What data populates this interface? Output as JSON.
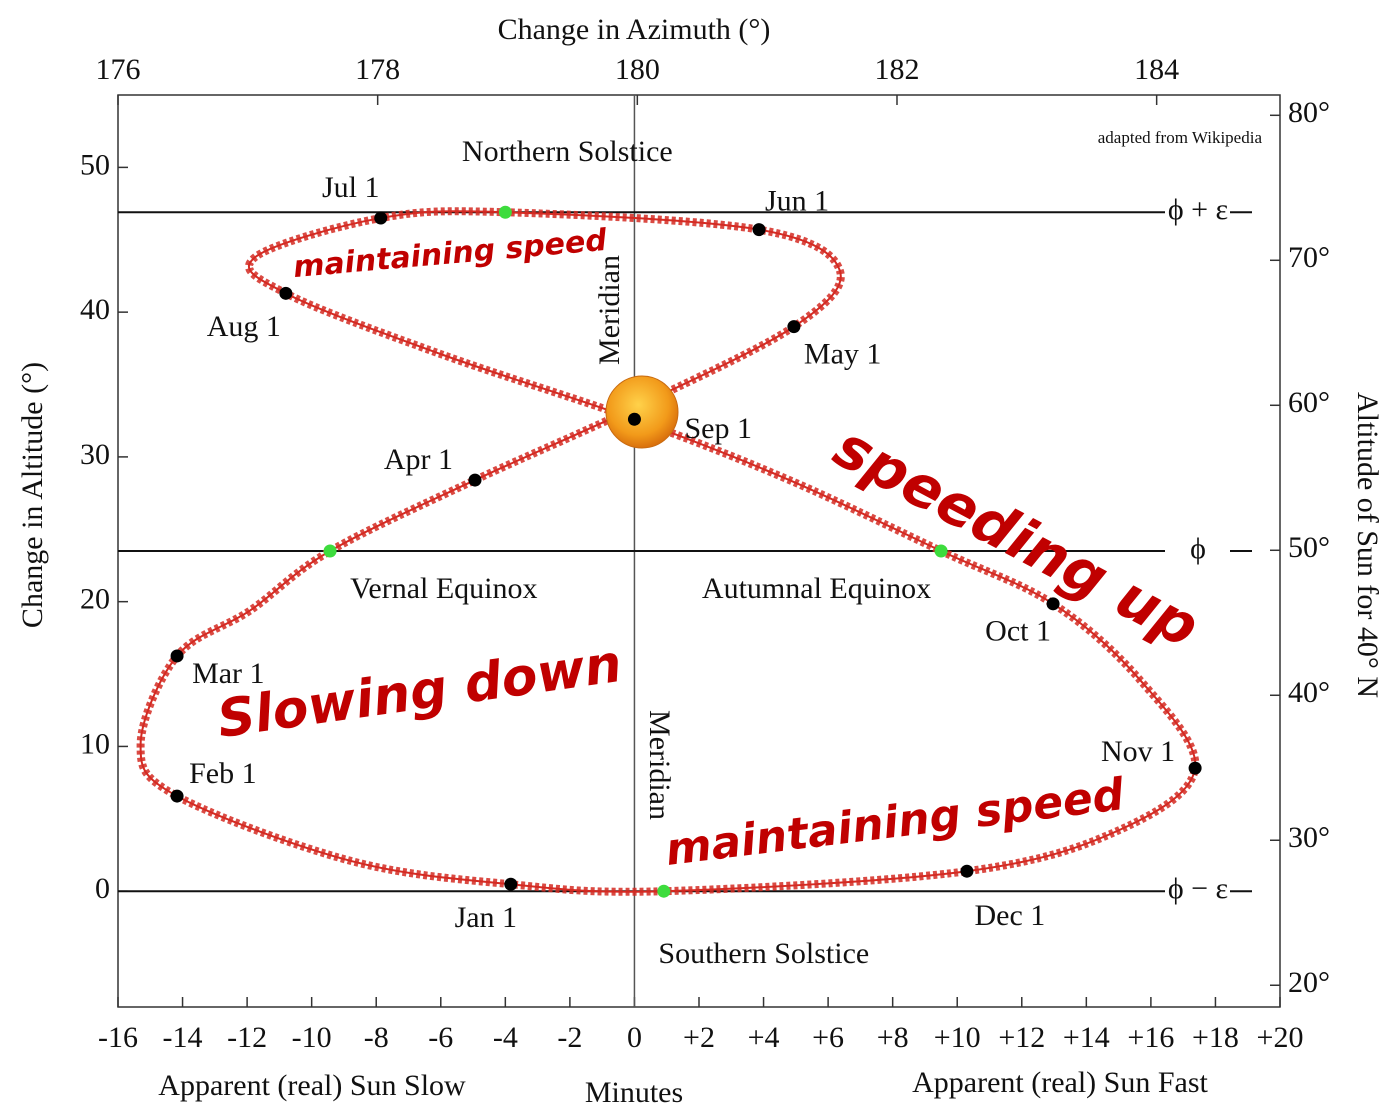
{
  "chart_data": {
    "type": "line",
    "x2_label": "Change in Azimuth (°)",
    "x_label": "Minutes",
    "x_note_left": "Apparent (real) Sun Slow",
    "x_note_right": "Apparent (real) Sun Fast",
    "y_label": "Change in Altitude (°)",
    "y2_label": "Altitude of Sun for 40° N",
    "source": "adapted from Wikipedia",
    "xlim": [
      -16,
      20
    ],
    "xticks": [
      -16,
      -14,
      -12,
      -10,
      -8,
      -6,
      -4,
      -2,
      0,
      {
        "value": 2,
        "label": "+2"
      },
      {
        "value": 4,
        "label": "+4"
      },
      {
        "value": 6,
        "label": "+6"
      },
      {
        "value": 8,
        "label": "+8"
      },
      {
        "value": 10,
        "label": "+10"
      },
      {
        "value": 12,
        "label": "+12"
      },
      {
        "value": 14,
        "label": "+14"
      },
      {
        "value": 16,
        "label": "+16"
      },
      {
        "value": 18,
        "label": "+18"
      },
      {
        "value": 20,
        "label": "+20"
      }
    ],
    "x2lim": [
      176,
      184.95
    ],
    "x2ticks": [
      176,
      178,
      180,
      182,
      184
    ],
    "ylim": [
      -8,
      55
    ],
    "yticks": [
      0,
      10,
      20,
      30,
      40,
      50
    ],
    "y2lim": [
      18.5,
      81.4
    ],
    "y2ticks": [
      {
        "value": 20,
        "label": "20°"
      },
      {
        "value": 30,
        "label": "30°"
      },
      {
        "value": 40,
        "label": "40°"
      },
      {
        "value": 50,
        "label": "50°"
      },
      {
        "value": 60,
        "label": "60°"
      },
      {
        "value": 70,
        "label": "70°"
      },
      {
        "value": 80,
        "label": "80°"
      }
    ],
    "x": [
      -3.83,
      -8.8,
      -14.17,
      -15.3,
      -14.17,
      -11.9,
      -9.43,
      -4.94,
      0.0,
      4.94,
      6.36,
      3.86,
      -4.0,
      -7.86,
      -11.75,
      -10.8,
      -6.0,
      0.0,
      4.8,
      9.5,
      12.97,
      15.66,
      17.37,
      15.0,
      10.3,
      0.91
    ],
    "series": [
      {
        "color": "#d42a22",
        "values": [
          0.48,
          2.1,
          6.57,
          10.1,
          16.25,
          19.4,
          23.5,
          28.4,
          33.4,
          39.0,
          42.9,
          45.7,
          46.9,
          46.5,
          43.8,
          41.3,
          37.1,
          32.6,
          28.4,
          23.5,
          19.85,
          14.6,
          8.5,
          4.2,
          1.38,
          0.0
        ]
      }
    ],
    "points": [
      {
        "label": "Jan 1",
        "x": -3.83,
        "y": 0.48,
        "color": "#000000"
      },
      {
        "label": "Feb 1",
        "x": -14.17,
        "y": 6.57,
        "color": "#000000"
      },
      {
        "label": "Mar 1",
        "x": -14.17,
        "y": 16.25,
        "color": "#000000"
      },
      {
        "label": "Vernal Equinox",
        "x": -9.43,
        "y": 23.5,
        "color": "#3ddc3d"
      },
      {
        "label": "Apr 1",
        "x": -4.94,
        "y": 28.4,
        "color": "#000000"
      },
      {
        "label": "May 1",
        "x": 4.94,
        "y": 39.0,
        "color": "#000000"
      },
      {
        "label": "Jun 1",
        "x": 3.86,
        "y": 45.7,
        "color": "#000000"
      },
      {
        "label": "Northern Solstice",
        "x": -4.0,
        "y": 46.9,
        "color": "#3ddc3d"
      },
      {
        "label": "Jul 1",
        "x": -7.86,
        "y": 46.5,
        "color": "#000000"
      },
      {
        "label": "Aug 1",
        "x": -10.8,
        "y": 41.3,
        "color": "#000000"
      },
      {
        "label": "Sep 1",
        "x": 0.0,
        "y": 32.6,
        "color": "#000000"
      },
      {
        "label": "Autumnal Equinox",
        "x": 9.5,
        "y": 23.5,
        "color": "#3ddc3d"
      },
      {
        "label": "Oct 1",
        "x": 12.97,
        "y": 19.85,
        "color": "#000000"
      },
      {
        "label": "Nov 1",
        "x": 17.37,
        "y": 8.5,
        "color": "#000000"
      },
      {
        "label": "Dec 1",
        "x": 10.3,
        "y": 1.38,
        "color": "#000000"
      },
      {
        "label": "Southern Solstice",
        "x": 0.91,
        "y": 0.0,
        "color": "#3ddc3d"
      }
    ],
    "reference_lines": [
      {
        "y": 46.9,
        "label": "ϕ + ε"
      },
      {
        "y": 23.5,
        "label": "ϕ"
      },
      {
        "y": 0,
        "label": "ϕ − ε"
      }
    ],
    "meridian_labels": [
      "Meridian",
      "Meridian"
    ],
    "annotations": [
      "maintaining speed",
      "speeding up",
      "Slowing down",
      "maintaining speed"
    ]
  }
}
